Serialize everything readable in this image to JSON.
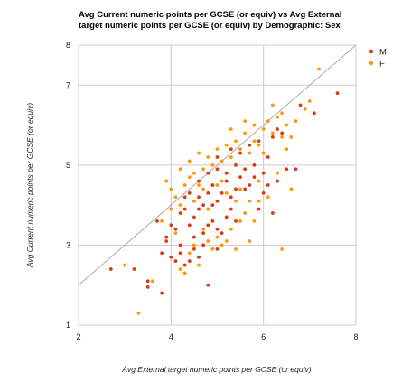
{
  "chart_data": {
    "type": "scatter",
    "title_lines": [
      "Avg Current numeric points per GCSE (or equiv) vs Avg External",
      "target numeric points per GCSE (or equiv) by Demographic: Sex"
    ],
    "xlabel": "Avg External target numeric points per GCSE (or equiv)",
    "ylabel": "Avg Current numeric points per GCSE (or equiv)",
    "xlim": [
      2,
      8
    ],
    "ylim": [
      1,
      8
    ],
    "x_ticks": [
      "2",
      "4",
      "6",
      "8"
    ],
    "y_ticks": [
      "1",
      "3",
      "5",
      "7",
      "8"
    ],
    "y_tick_values": [
      1,
      3,
      5,
      7,
      8
    ],
    "x_tick_values": [
      2,
      4,
      6,
      8
    ],
    "grid": true,
    "reference_line": [
      [
        2,
        2
      ],
      [
        8,
        8
      ]
    ],
    "legend_position": "right",
    "series": [
      {
        "name": "M",
        "color": "#dc3912",
        "points": [
          [
            2.7,
            2.4
          ],
          [
            3.2,
            2.4
          ],
          [
            3.5,
            2.1
          ],
          [
            3.5,
            1.95
          ],
          [
            3.8,
            1.8
          ],
          [
            3.7,
            3.6
          ],
          [
            3.9,
            3.2
          ],
          [
            3.8,
            2.8
          ],
          [
            4.0,
            2.7
          ],
          [
            4.1,
            2.6
          ],
          [
            4.2,
            2.8
          ],
          [
            4.3,
            2.5
          ],
          [
            4.4,
            2.6
          ],
          [
            4.5,
            2.9
          ],
          [
            4.6,
            2.7
          ],
          [
            4.8,
            2.0
          ],
          [
            3.9,
            3.1
          ],
          [
            4.0,
            3.5
          ],
          [
            4.1,
            3.4
          ],
          [
            4.2,
            3.8
          ],
          [
            4.3,
            3.9
          ],
          [
            4.4,
            3.5
          ],
          [
            4.5,
            3.2
          ],
          [
            4.5,
            3.7
          ],
          [
            4.6,
            3.9
          ],
          [
            4.7,
            3.3
          ],
          [
            4.8,
            3.5
          ],
          [
            4.9,
            3.6
          ],
          [
            5.0,
            3.4
          ],
          [
            5.1,
            3.3
          ],
          [
            5.2,
            3.7
          ],
          [
            5.3,
            3.9
          ],
          [
            4.3,
            4.2
          ],
          [
            4.4,
            4.3
          ],
          [
            4.5,
            4.1
          ],
          [
            4.6,
            4.2
          ],
          [
            4.7,
            4.0
          ],
          [
            4.8,
            4.3
          ],
          [
            4.9,
            4.5
          ],
          [
            5.0,
            4.1
          ],
          [
            5.1,
            4.3
          ],
          [
            5.2,
            4.6
          ],
          [
            5.3,
            4.2
          ],
          [
            5.4,
            4.4
          ],
          [
            5.5,
            4.7
          ],
          [
            5.6,
            4.4
          ],
          [
            5.7,
            4.5
          ],
          [
            5.8,
            4.7
          ],
          [
            4.6,
            4.6
          ],
          [
            4.8,
            4.8
          ],
          [
            5.0,
            4.9
          ],
          [
            5.2,
            4.8
          ],
          [
            5.4,
            5.0
          ],
          [
            5.6,
            4.9
          ],
          [
            5.8,
            5.0
          ],
          [
            6.0,
            4.8
          ],
          [
            5.0,
            5.2
          ],
          [
            5.3,
            5.4
          ],
          [
            5.5,
            5.3
          ],
          [
            5.7,
            5.5
          ],
          [
            5.9,
            5.6
          ],
          [
            6.1,
            5.2
          ],
          [
            6.2,
            5.7
          ],
          [
            6.3,
            5.9
          ],
          [
            6.0,
            4.3
          ],
          [
            6.1,
            4.5
          ],
          [
            6.3,
            4.6
          ],
          [
            6.5,
            4.9
          ],
          [
            6.7,
            4.9
          ],
          [
            6.2,
            3.8
          ],
          [
            5.9,
            3.9
          ],
          [
            6.4,
            5.8
          ],
          [
            6.8,
            6.5
          ],
          [
            7.1,
            6.3
          ],
          [
            7.6,
            6.8
          ],
          [
            4.9,
            4.0
          ],
          [
            4.2,
            3.0
          ],
          [
            4.7,
            3.0
          ],
          [
            5.4,
            3.6
          ],
          [
            5.0,
            2.9
          ]
        ]
      },
      {
        "name": "F",
        "color": "#ff9900",
        "points": [
          [
            3.0,
            2.5
          ],
          [
            3.3,
            1.3
          ],
          [
            3.6,
            2.1
          ],
          [
            3.8,
            3.6
          ],
          [
            4.0,
            3.9
          ],
          [
            4.1,
            3.3
          ],
          [
            4.2,
            2.4
          ],
          [
            4.3,
            2.3
          ],
          [
            4.4,
            2.8
          ],
          [
            4.5,
            3.0
          ],
          [
            4.6,
            2.5
          ],
          [
            4.7,
            3.4
          ],
          [
            4.8,
            3.1
          ],
          [
            4.9,
            2.9
          ],
          [
            5.0,
            3.2
          ],
          [
            5.1,
            3.0
          ],
          [
            5.2,
            3.1
          ],
          [
            5.3,
            3.4
          ],
          [
            5.4,
            2.9
          ],
          [
            5.5,
            3.6
          ],
          [
            5.6,
            3.8
          ],
          [
            5.7,
            3.1
          ],
          [
            5.8,
            3.6
          ],
          [
            5.9,
            4.1
          ],
          [
            4.0,
            4.4
          ],
          [
            4.1,
            4.2
          ],
          [
            4.2,
            4.0
          ],
          [
            4.3,
            4.5
          ],
          [
            4.4,
            4.7
          ],
          [
            4.5,
            4.8
          ],
          [
            4.6,
            4.5
          ],
          [
            4.7,
            4.9
          ],
          [
            4.8,
            5.2
          ],
          [
            4.9,
            5.0
          ],
          [
            5.0,
            5.4
          ],
          [
            5.1,
            5.1
          ],
          [
            5.2,
            5.5
          ],
          [
            5.3,
            5.2
          ],
          [
            5.4,
            5.6
          ],
          [
            5.5,
            5.4
          ],
          [
            5.6,
            5.8
          ],
          [
            5.7,
            5.3
          ],
          [
            5.8,
            6.0
          ],
          [
            5.9,
            5.5
          ],
          [
            6.0,
            5.9
          ],
          [
            6.1,
            6.1
          ],
          [
            6.2,
            5.8
          ],
          [
            6.3,
            6.2
          ],
          [
            6.4,
            5.7
          ],
          [
            6.5,
            6.0
          ],
          [
            6.6,
            5.7
          ],
          [
            6.7,
            6.1
          ],
          [
            6.9,
            6.4
          ],
          [
            7.0,
            6.6
          ],
          [
            7.2,
            7.4
          ],
          [
            6.4,
            6.3
          ],
          [
            6.2,
            6.5
          ],
          [
            5.6,
            6.1
          ],
          [
            5.3,
            5.9
          ],
          [
            4.6,
            5.3
          ],
          [
            4.4,
            5.1
          ],
          [
            4.2,
            4.9
          ],
          [
            3.9,
            4.6
          ],
          [
            4.5,
            4.1
          ],
          [
            5.1,
            4.6
          ],
          [
            5.5,
            4.4
          ],
          [
            5.9,
            4.6
          ],
          [
            6.3,
            4.8
          ],
          [
            6.6,
            4.4
          ],
          [
            6.4,
            2.9
          ],
          [
            6.1,
            4.2
          ],
          [
            5.7,
            4.1
          ],
          [
            5.2,
            4.3
          ],
          [
            4.7,
            4.4
          ],
          [
            4.8,
            3.9
          ],
          [
            5.4,
            4.1
          ],
          [
            6.0,
            5.3
          ],
          [
            5.8,
            5.6
          ],
          [
            6.5,
            5.4
          ],
          [
            5.0,
            4.5
          ]
        ]
      }
    ]
  }
}
